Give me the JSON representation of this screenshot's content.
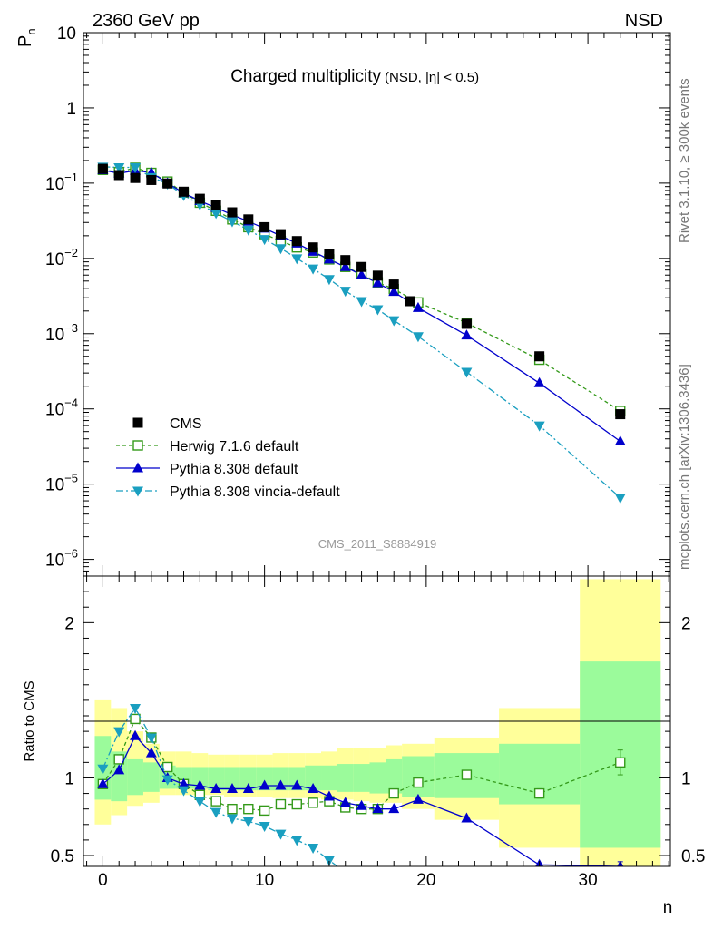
{
  "header": {
    "left": "2360 GeV pp",
    "right": "NSD"
  },
  "side_labels": {
    "rivet": "Rivet 3.1.10, ≥ 300k events",
    "mcplots": "mcplots.cern.ch [arXiv:1306.3436]"
  },
  "chart_data": [
    {
      "type": "scatter",
      "title": "Charged multiplicity",
      "subtitle": "(NSD, |η| < 0.5)",
      "watermark": "CMS_2011_S8884919",
      "ylabel": "P_n",
      "yscale": "log",
      "ylim": [
        6e-07,
        10
      ],
      "xlim": [
        -1.2,
        35.1
      ],
      "y_ticks": [
        {
          "v": 10,
          "base": "10",
          "exp": ""
        },
        {
          "v": 1,
          "base": "1",
          "exp": ""
        },
        {
          "v": 0.1,
          "base": "10",
          "exp": "−1"
        },
        {
          "v": 0.01,
          "base": "10",
          "exp": "−2"
        },
        {
          "v": 0.001,
          "base": "10",
          "exp": "−3"
        },
        {
          "v": 0.0001,
          "base": "10",
          "exp": "−4"
        },
        {
          "v": 1e-05,
          "base": "10",
          "exp": "−5"
        },
        {
          "v": 1e-06,
          "base": "10",
          "exp": "−6"
        }
      ],
      "legend_position": "bottom-left",
      "series": [
        {
          "name": "CMS",
          "kind": "data",
          "color": "#000000",
          "marker": "square-filled",
          "dash": "",
          "x": [
            0,
            1,
            2,
            3,
            4,
            5,
            6,
            7,
            8,
            9,
            10,
            11,
            12,
            13,
            14,
            15,
            16,
            17,
            18,
            19,
            22.5,
            27,
            32
          ],
          "y": [
            0.155,
            0.128,
            0.117,
            0.11,
            0.099,
            0.077,
            0.062,
            0.051,
            0.041,
            0.033,
            0.026,
            0.021,
            0.017,
            0.014,
            0.0115,
            0.0095,
            0.0077,
            0.0059,
            0.0045,
            0.0027,
            0.00135,
            0.0005,
            8.5e-05
          ]
        },
        {
          "name": "Herwig 7.1.6 default",
          "kind": "mc",
          "color": "#339919",
          "marker": "square-open",
          "dash": "4,3",
          "x": [
            0,
            1,
            2,
            3,
            4,
            5,
            6,
            7,
            8,
            9,
            10,
            11,
            12,
            13,
            14,
            15,
            16,
            17,
            18,
            19.5,
            22.5,
            27,
            32
          ],
          "y": [
            0.15,
            0.14,
            0.16,
            0.137,
            0.105,
            0.075,
            0.055,
            0.043,
            0.033,
            0.026,
            0.021,
            0.017,
            0.014,
            0.012,
            0.0097,
            0.0077,
            0.0062,
            0.0048,
            0.0039,
            0.0026,
            0.00139,
            0.00045,
            9.4e-05
          ]
        },
        {
          "name": "Pythia 8.308 default",
          "kind": "mc",
          "color": "#0000cc",
          "marker": "triangle-up",
          "dash": "",
          "x": [
            0,
            1,
            2,
            3,
            4,
            5,
            6,
            7,
            8,
            9,
            10,
            11,
            12,
            13,
            14,
            15,
            16,
            17,
            18,
            19.5,
            22.5,
            27,
            32
          ],
          "y": [
            0.149,
            0.135,
            0.147,
            0.138,
            0.1,
            0.074,
            0.058,
            0.047,
            0.038,
            0.031,
            0.025,
            0.02,
            0.0158,
            0.0123,
            0.0097,
            0.0077,
            0.006,
            0.0047,
            0.0036,
            0.0022,
            0.00095,
            0.00022,
            3.7e-05
          ]
        },
        {
          "name": "Pythia 8.308 vincia-default",
          "kind": "mc",
          "color": "#1a9fc0",
          "marker": "triangle-down",
          "dash": "8,3,2,3",
          "x": [
            0,
            1,
            2,
            3,
            4,
            5,
            6,
            7,
            8,
            9,
            10,
            11,
            12,
            13,
            14,
            15,
            16,
            17,
            18,
            19.5,
            22.5,
            27,
            32
          ],
          "y": [
            0.165,
            0.162,
            0.162,
            0.12,
            0.098,
            0.069,
            0.052,
            0.04,
            0.031,
            0.024,
            0.018,
            0.0136,
            0.01,
            0.0073,
            0.0053,
            0.0037,
            0.0027,
            0.0021,
            0.0015,
            0.00092,
            0.00031,
            6e-05,
            6.6e-06
          ]
        }
      ]
    },
    {
      "type": "scatter",
      "ylabel": "Ratio to CMS",
      "xlabel": "n",
      "ylim": [
        0.43,
        2.3
      ],
      "xlim": [
        -1.2,
        35.1
      ],
      "y_ticks": [
        {
          "v": 0.5,
          "label": "0.5"
        },
        {
          "v": 1,
          "label": "1"
        },
        {
          "v": 2,
          "label": "2"
        }
      ],
      "x_ticks": [
        {
          "v": 0,
          "label": "0"
        },
        {
          "v": 10,
          "label": "10"
        },
        {
          "v": 20,
          "label": "20"
        },
        {
          "v": 30,
          "label": "30"
        }
      ],
      "uncertainty_bands": {
        "edges": [
          -0.5,
          0.5,
          1.5,
          2.5,
          3.5,
          4.5,
          5.5,
          6.5,
          7.5,
          8.5,
          9.5,
          10.5,
          11.5,
          12.5,
          13.5,
          14.5,
          15.5,
          16.5,
          17.5,
          18.5,
          20.5,
          24.5,
          29.5,
          34.5
        ],
        "yellow_lo": [
          0.7,
          0.76,
          0.82,
          0.84,
          0.89,
          0.89,
          0.89,
          0.89,
          0.88,
          0.88,
          0.88,
          0.87,
          0.87,
          0.87,
          0.86,
          0.86,
          0.85,
          0.84,
          0.84,
          0.8,
          0.73,
          0.55,
          0.37
        ],
        "yellow_hi": [
          1.5,
          1.45,
          1.3,
          1.22,
          1.17,
          1.17,
          1.16,
          1.15,
          1.15,
          1.15,
          1.15,
          1.16,
          1.16,
          1.16,
          1.17,
          1.19,
          1.19,
          1.19,
          1.21,
          1.22,
          1.26,
          1.45,
          2.28
        ],
        "green_lo": [
          0.86,
          0.85,
          0.89,
          0.91,
          0.93,
          0.93,
          0.93,
          0.92,
          0.92,
          0.92,
          0.92,
          0.92,
          0.92,
          0.92,
          0.92,
          0.91,
          0.91,
          0.9,
          0.9,
          0.88,
          0.87,
          0.83,
          0.55
        ],
        "green_hi": [
          1.27,
          1.17,
          1.12,
          1.1,
          1.08,
          1.07,
          1.07,
          1.07,
          1.07,
          1.07,
          1.07,
          1.07,
          1.07,
          1.08,
          1.08,
          1.09,
          1.09,
          1.1,
          1.12,
          1.14,
          1.16,
          1.22,
          1.75
        ]
      },
      "series": [
        {
          "name": "Herwig 7.1.6 default",
          "color": "#339919",
          "marker": "square-open",
          "dash": "4,3",
          "x": [
            0,
            1,
            2,
            3,
            4,
            5,
            6,
            7,
            8,
            9,
            10,
            11,
            12,
            13,
            14,
            15,
            16,
            17,
            18,
            19.5,
            22.5,
            27,
            32
          ],
          "y": [
            0.96,
            1.12,
            1.38,
            1.26,
            1.07,
            0.96,
            0.89,
            0.85,
            0.8,
            0.8,
            0.79,
            0.83,
            0.83,
            0.84,
            0.85,
            0.81,
            0.8,
            0.8,
            0.9,
            0.97,
            1.02,
            0.9,
            1.1
          ],
          "err": [
            0,
            0,
            0,
            0,
            0,
            0,
            0,
            0,
            0,
            0,
            0,
            0,
            0,
            0,
            0,
            0,
            0,
            0,
            0,
            0,
            0,
            0.03,
            0.08
          ]
        },
        {
          "name": "Pythia 8.308 default",
          "color": "#0000cc",
          "marker": "triangle-up",
          "dash": "",
          "x": [
            0,
            1,
            2,
            3,
            4,
            5,
            6,
            7,
            8,
            9,
            10,
            11,
            12,
            13,
            14,
            15,
            16,
            17,
            18,
            19.5,
            22.5,
            27,
            32
          ],
          "y": [
            0.96,
            1.05,
            1.27,
            1.16,
            1.0,
            0.96,
            0.95,
            0.93,
            0.93,
            0.93,
            0.95,
            0.95,
            0.95,
            0.93,
            0.88,
            0.84,
            0.82,
            0.8,
            0.8,
            0.86,
            0.74,
            0.44,
            0.43
          ],
          "err": [
            0,
            0,
            0,
            0,
            0,
            0,
            0,
            0,
            0,
            0,
            0,
            0,
            0,
            0,
            0,
            0,
            0,
            0,
            0,
            0,
            0,
            0,
            0.03
          ]
        },
        {
          "name": "Pythia 8.308 vincia-default",
          "color": "#1a9fc0",
          "marker": "triangle-down",
          "dash": "8,3,2,3",
          "x": [
            0,
            1,
            2,
            3,
            4,
            5,
            6,
            7,
            8,
            9,
            10,
            11,
            12,
            13,
            14,
            15
          ],
          "y": [
            1.06,
            1.3,
            1.45,
            1.26,
            0.99,
            0.92,
            0.85,
            0.78,
            0.74,
            0.72,
            0.69,
            0.64,
            0.6,
            0.55,
            0.47,
            0.39
          ],
          "err": [
            0,
            0,
            0,
            0,
            0,
            0,
            0,
            0,
            0,
            0,
            0,
            0,
            0,
            0,
            0,
            0
          ]
        }
      ]
    }
  ]
}
